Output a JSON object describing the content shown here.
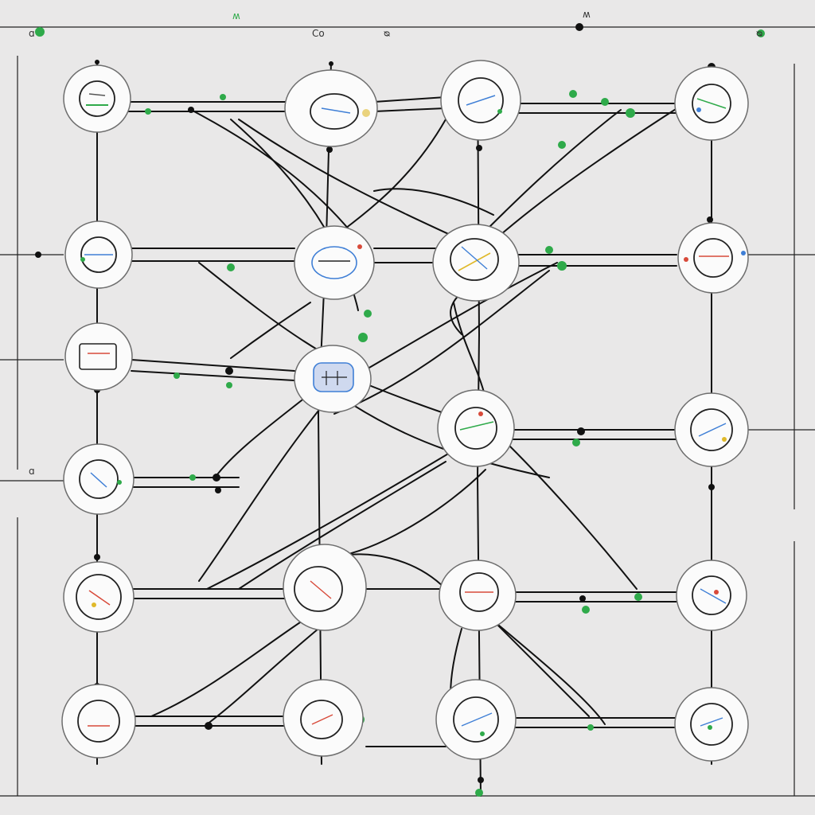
{
  "labels": {
    "top_a": "ɑ",
    "top_b": "Co",
    "top_c": "ᴓ",
    "top_d": "ʍ",
    "top_e": "ᴓ",
    "top_f": "ɑ",
    "left_mid": "ɑ"
  },
  "colors": {
    "background": "#e9e8e8",
    "wire": "#111111",
    "node_fill": "#fbfbfb",
    "node_stroke": "#6e6e6e",
    "accent_green": "#2faa4a",
    "accent_blue": "#3f7fd6",
    "accent_red": "#d84a3a",
    "accent_yellow": "#e0b92a"
  },
  "diagram": {
    "columns": 4,
    "rows": 6,
    "nodes": [
      "n-0-0",
      "n-0-1",
      "n-0-2",
      "n-0-3",
      "n-0-4",
      "n-0-5",
      "n-1-0",
      "n-1-1",
      "n-1-2",
      "n-1-3",
      "n-1-4",
      "n-2-0",
      "n-2-1",
      "n-2-2",
      "n-2-3",
      "n-2-4",
      "n-3-0",
      "n-3-1",
      "n-3-2",
      "n-3-3",
      "n-3-4"
    ]
  }
}
